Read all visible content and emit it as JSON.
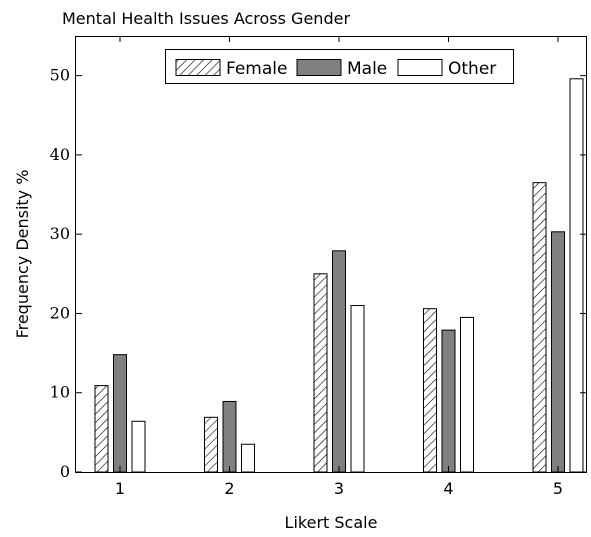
{
  "chart_data": {
    "type": "bar",
    "title": "Mental Health Issues Across Gender",
    "xlabel": "Likert Scale",
    "ylabel": "Frequency Density %",
    "categories": [
      "1",
      "2",
      "3",
      "4",
      "5"
    ],
    "ylim": [
      0,
      55
    ],
    "yticks": [
      "0",
      "10",
      "20",
      "30",
      "40",
      "50"
    ],
    "grid": false,
    "legend_position": "top-center",
    "series": [
      {
        "name": "Female",
        "values": [
          10.9,
          6.9,
          25.0,
          20.6,
          36.5
        ],
        "fill": "hatch"
      },
      {
        "name": "Male",
        "values": [
          14.8,
          8.9,
          27.9,
          17.9,
          30.3
        ],
        "color": "#808080"
      },
      {
        "name": "Other",
        "values": [
          6.4,
          3.5,
          21.0,
          19.5,
          49.6
        ],
        "color": "#ffffff"
      }
    ]
  }
}
